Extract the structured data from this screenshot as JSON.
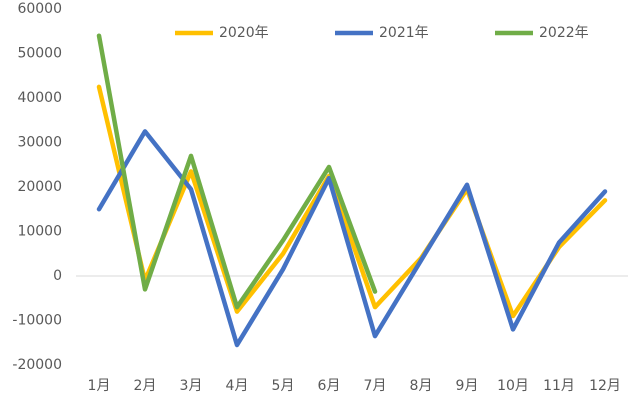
{
  "chart_data": {
    "type": "line",
    "categories": [
      "1月",
      "2月",
      "3月",
      "4月",
      "5月",
      "6月",
      "7月",
      "8月",
      "9月",
      "10月",
      "11月",
      "12月"
    ],
    "series": [
      {
        "name": "2020年",
        "color": "#FFC000",
        "values": [
          42500,
          -1000,
          23500,
          -8000,
          5000,
          22500,
          -7000,
          4000,
          19500,
          -9000,
          6500,
          17000
        ]
      },
      {
        "name": "2021年",
        "color": "#4472C4",
        "values": [
          15000,
          32500,
          19500,
          -15500,
          1500,
          22000,
          -13500,
          3500,
          20500,
          -12000,
          7500,
          19000
        ]
      },
      {
        "name": "2022年",
        "color": "#70AD47",
        "values": [
          54000,
          -3000,
          27000,
          -7000,
          8000,
          24500,
          -3500,
          null,
          null,
          null,
          null,
          null
        ]
      }
    ],
    "ylim": [
      -20000,
      60000
    ],
    "yticks": [
      -20000,
      -10000,
      0,
      10000,
      20000,
      30000,
      40000,
      50000,
      60000
    ],
    "legend": "top"
  }
}
